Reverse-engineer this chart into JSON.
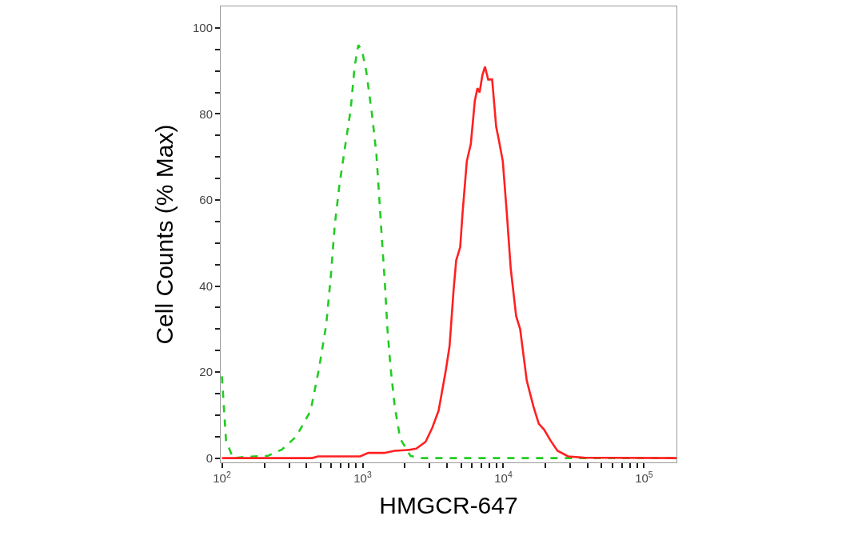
{
  "chart_data": {
    "type": "line",
    "xlabel": "HMGCR-647",
    "ylabel": "Cell Counts (% Max)",
    "log": "x",
    "xlim": [
      98,
      170000
    ],
    "ylim": [
      -1,
      105
    ],
    "xticks": [
      {
        "value": 100,
        "label": "10$^{2}$"
      },
      {
        "value": 200,
        "label": null
      },
      {
        "value": 300,
        "label": null
      },
      {
        "value": 400,
        "label": null
      },
      {
        "value": 500,
        "label": null
      },
      {
        "value": 600,
        "label": null
      },
      {
        "value": 700,
        "label": null
      },
      {
        "value": 800,
        "label": null
      },
      {
        "value": 900,
        "label": null
      },
      {
        "value": 1000,
        "label": "10$^{3}$"
      },
      {
        "value": 2000,
        "label": null
      },
      {
        "value": 3000,
        "label": null
      },
      {
        "value": 4000,
        "label": null
      },
      {
        "value": 5000,
        "label": null
      },
      {
        "value": 6000,
        "label": null
      },
      {
        "value": 7000,
        "label": null
      },
      {
        "value": 8000,
        "label": null
      },
      {
        "value": 9000,
        "label": null
      },
      {
        "value": 10000,
        "label": "10$^{4}$"
      },
      {
        "value": 20000,
        "label": null
      },
      {
        "value": 30000,
        "label": null
      },
      {
        "value": 40000,
        "label": null
      },
      {
        "value": 50000,
        "label": null
      },
      {
        "value": 60000,
        "label": null
      },
      {
        "value": 70000,
        "label": null
      },
      {
        "value": 80000,
        "label": null
      },
      {
        "value": 90000,
        "label": null
      },
      {
        "value": 100000,
        "label": "10$^{5}$"
      }
    ],
    "yticks": [
      0,
      {
        "value": 5,
        "label": null
      },
      {
        "value": 10,
        "label": null
      },
      {
        "value": 15,
        "label": null
      },
      20,
      {
        "value": 25,
        "label": null
      },
      {
        "value": 30,
        "label": null
      },
      {
        "value": 35,
        "label": null
      },
      40,
      {
        "value": 45,
        "label": null
      },
      {
        "value": 50,
        "label": null
      },
      {
        "value": 55,
        "label": null
      },
      60,
      {
        "value": 65,
        "label": null
      },
      {
        "value": 70,
        "label": null
      },
      {
        "value": 75,
        "label": null
      },
      80,
      {
        "value": 85,
        "label": null
      },
      {
        "value": 90,
        "label": null
      },
      {
        "value": 95,
        "label": null
      },
      100
    ],
    "series": [
      {
        "color": "#22cc22",
        "line_style": "dashed",
        "x": [
          100,
          107,
          120,
          146,
          211,
          267,
          337,
          427,
          491,
          551,
          593,
          633,
          681,
          747,
          822,
          877,
          931,
          986,
          1060,
          1164,
          1250,
          1310,
          1370,
          1437,
          1500,
          1580,
          1690,
          1850,
          2190,
          2630,
          170000
        ],
        "values": [
          19,
          4,
          0,
          0.3,
          0.5,
          2,
          5,
          11,
          21,
          31,
          42,
          54,
          63,
          72,
          81,
          91,
          96,
          95,
          90,
          80,
          71,
          61,
          51,
          41,
          30,
          21,
          12,
          4.5,
          0.5,
          0,
          0
        ]
      },
      {
        "color": "#ff2020",
        "line_style": "solid",
        "x": [
          100,
          438,
          481,
          961,
          1096,
          1422,
          1687,
          2109,
          2405,
          2802,
          3120,
          3465,
          3883,
          4146,
          4428,
          4624,
          4935,
          5130,
          5499,
          5871,
          6267,
          6548,
          6777,
          7096,
          7401,
          7798,
          8325,
          8892,
          9282,
          9909,
          10580,
          11290,
          12330,
          13160,
          14670,
          16360,
          17850,
          19490,
          21730,
          24260,
          28860,
          37470,
          170000
        ],
        "values": [
          0,
          0,
          0.4,
          0.4,
          1.2,
          1.2,
          1.7,
          1.9,
          2.2,
          3.8,
          7,
          11,
          20,
          26,
          39,
          46,
          49,
          57,
          69,
          73,
          83,
          86,
          85,
          89,
          91,
          88,
          88,
          77,
          74,
          69,
          57,
          44,
          33,
          30,
          18,
          12,
          8,
          6.6,
          4,
          1.7,
          0.4,
          0.1,
          0
        ]
      }
    ]
  }
}
